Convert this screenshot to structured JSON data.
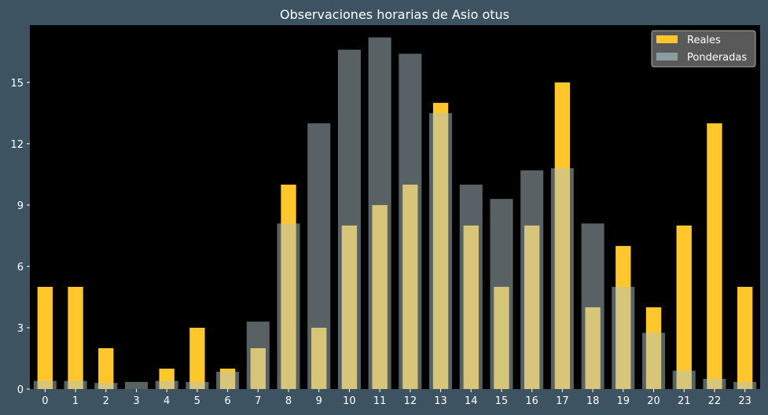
{
  "chart_data": {
    "type": "bar",
    "title": "Observaciones horarias de Asio otus",
    "xlabel": "",
    "ylabel": "",
    "categories": [
      "0",
      "1",
      "2",
      "3",
      "4",
      "5",
      "6",
      "7",
      "8",
      "9",
      "10",
      "11",
      "12",
      "13",
      "14",
      "15",
      "16",
      "17",
      "18",
      "19",
      "20",
      "21",
      "22",
      "23"
    ],
    "series": [
      {
        "name": "Reales",
        "color": "#ffc72c",
        "values": [
          5,
          5,
          2,
          0,
          1,
          3,
          1,
          2,
          10,
          3,
          8,
          9,
          10,
          14,
          8,
          5,
          8,
          15,
          4,
          7,
          4,
          8,
          13,
          5
        ]
      },
      {
        "name": "Ponderadas",
        "color": "#b0c4c8",
        "values": [
          0.4,
          0.4,
          0.3,
          0.35,
          0.4,
          0.35,
          0.85,
          3.3,
          8.1,
          13.0,
          16.6,
          17.2,
          16.4,
          13.5,
          10.0,
          9.3,
          10.7,
          10.8,
          8.1,
          5.0,
          2.75,
          0.9,
          0.5,
          0.35
        ]
      }
    ],
    "ylim": [
      0,
      17.8
    ],
    "yticks": [
      0,
      3,
      6,
      9,
      12,
      15
    ],
    "grid": false,
    "legend_position": "top-right"
  }
}
